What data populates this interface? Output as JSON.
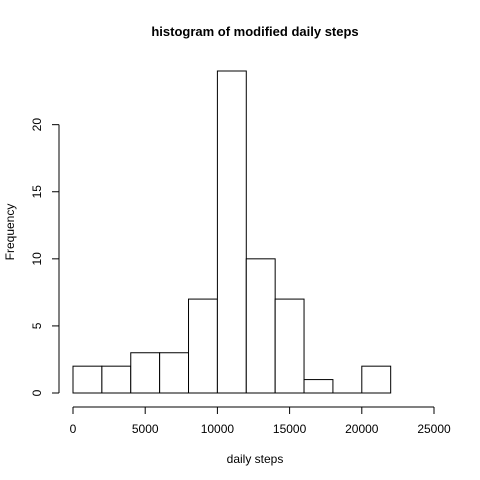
{
  "chart_data": {
    "type": "bar",
    "title": "histogram of modified daily steps",
    "xlabel": "daily steps",
    "ylabel": "Frequency",
    "bins": [
      {
        "start": 0,
        "end": 2000,
        "count": 2
      },
      {
        "start": 2000,
        "end": 4000,
        "count": 2
      },
      {
        "start": 4000,
        "end": 6000,
        "count": 3
      },
      {
        "start": 6000,
        "end": 8000,
        "count": 3
      },
      {
        "start": 8000,
        "end": 10000,
        "count": 7
      },
      {
        "start": 10000,
        "end": 12000,
        "count": 24
      },
      {
        "start": 12000,
        "end": 14000,
        "count": 10
      },
      {
        "start": 14000,
        "end": 16000,
        "count": 7
      },
      {
        "start": 16000,
        "end": 18000,
        "count": 1
      },
      {
        "start": 18000,
        "end": 20000,
        "count": 0
      },
      {
        "start": 20000,
        "end": 22000,
        "count": 2
      }
    ],
    "xlim": [
      0,
      25000
    ],
    "ylim": [
      0,
      24
    ],
    "xticks": [
      0,
      5000,
      10000,
      15000,
      20000,
      25000
    ],
    "yticks": [
      0,
      5,
      10,
      15,
      20
    ],
    "grid": false,
    "legend": "none"
  }
}
